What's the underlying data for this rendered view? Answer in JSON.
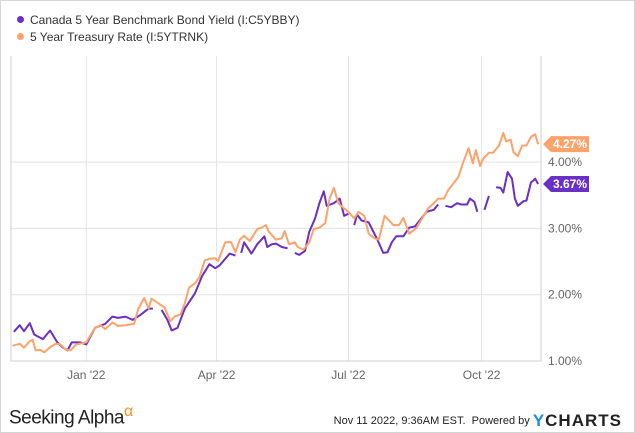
{
  "chart_data": {
    "type": "line",
    "legend_position": "top-left",
    "grid": true,
    "ylim": [
      1.0,
      5.6
    ],
    "xlim": [
      "2021-11-10",
      "2022-11-11"
    ],
    "x_ticks": [
      {
        "date": "2022-01-01",
        "label": "Jan '22"
      },
      {
        "date": "2022-04-01",
        "label": "Apr '22"
      },
      {
        "date": "2022-07-01",
        "label": "Jul '22"
      },
      {
        "date": "2022-10-01",
        "label": "Oct '22"
      }
    ],
    "y_ticks": [
      {
        "value": 1,
        "label": "1.00%"
      },
      {
        "value": 2,
        "label": "2.00%"
      },
      {
        "value": 3,
        "label": "3.00%"
      },
      {
        "value": 4,
        "label": "4.00%"
      }
    ],
    "series": [
      {
        "name": "Canada 5 Year Benchmark Bond Yield (I:C5YBBY)",
        "color": "#6a2fc6",
        "last_label": "3.67%",
        "points": [
          [
            "2021-11-12",
            1.44
          ],
          [
            "2021-11-16",
            1.54
          ],
          [
            "2021-11-19",
            1.45
          ],
          [
            "2021-11-23",
            1.57
          ],
          [
            "2021-11-26",
            1.4
          ],
          [
            "2021-12-02",
            1.33
          ],
          [
            "2021-12-07",
            1.46
          ],
          [
            "2021-12-12",
            1.28
          ],
          [
            "2021-12-16",
            1.2
          ],
          [
            "2021-12-19",
            1.16
          ],
          [
            "2021-12-22",
            1.28
          ],
          [
            "2021-12-28",
            1.28
          ],
          [
            "2022-01-01",
            1.25
          ],
          [
            "2022-01-07",
            1.5
          ],
          [
            "2022-01-14",
            1.56
          ],
          [
            "2022-01-19",
            1.67
          ],
          [
            "2022-01-23",
            1.65
          ],
          [
            "2022-01-28",
            1.67
          ],
          [
            "2022-02-02",
            1.62
          ],
          [
            "2022-02-07",
            1.69
          ],
          [
            "2022-02-13",
            1.79
          ],
          [
            "2022-02-16",
            1.79
          ],
          null,
          [
            "2022-02-22",
            1.77
          ],
          [
            "2022-02-26",
            1.62
          ],
          [
            "2022-03-01",
            1.46
          ],
          [
            "2022-03-05",
            1.5
          ],
          [
            "2022-03-10",
            1.79
          ],
          [
            "2022-03-17",
            2.02
          ],
          [
            "2022-03-22",
            2.28
          ],
          [
            "2022-03-27",
            2.46
          ],
          [
            "2022-03-31",
            2.4
          ],
          [
            "2022-04-03",
            2.44
          ],
          [
            "2022-04-10",
            2.62
          ],
          [
            "2022-04-14",
            2.59
          ],
          null,
          [
            "2022-04-18",
            2.63
          ],
          [
            "2022-04-20",
            2.79
          ],
          [
            "2022-04-25",
            2.62
          ],
          [
            "2022-04-29",
            2.76
          ],
          [
            "2022-05-04",
            2.88
          ],
          [
            "2022-05-06",
            2.72
          ],
          [
            "2022-05-09",
            2.76
          ],
          [
            "2022-05-12",
            2.77
          ],
          [
            "2022-05-16",
            2.72
          ],
          [
            "2022-05-20",
            2.7
          ],
          null,
          [
            "2022-05-25",
            2.63
          ],
          [
            "2022-05-28",
            2.6
          ],
          [
            "2022-06-01",
            2.66
          ],
          [
            "2022-06-04",
            2.95
          ],
          [
            "2022-06-08",
            3.15
          ],
          [
            "2022-06-11",
            3.38
          ],
          [
            "2022-06-14",
            3.56
          ],
          [
            "2022-06-16",
            3.34
          ],
          [
            "2022-06-21",
            3.38
          ],
          [
            "2022-06-25",
            3.45
          ],
          [
            "2022-06-28",
            3.19
          ],
          [
            "2022-07-01",
            3.22
          ],
          null,
          [
            "2022-07-05",
            3.05
          ],
          [
            "2022-07-07",
            3.21
          ],
          [
            "2022-07-10",
            3.12
          ],
          [
            "2022-07-15",
            3.09
          ],
          [
            "2022-07-18",
            2.96
          ],
          [
            "2022-07-21",
            2.83
          ],
          [
            "2022-07-25",
            2.63
          ],
          [
            "2022-07-28",
            2.64
          ],
          [
            "2022-07-31",
            2.79
          ],
          [
            "2022-08-03",
            2.88
          ],
          [
            "2022-08-08",
            2.88
          ],
          [
            "2022-08-12",
            3.01
          ],
          [
            "2022-08-16",
            3.03
          ],
          [
            "2022-08-20",
            3.14
          ],
          [
            "2022-08-24",
            3.25
          ],
          [
            "2022-08-29",
            3.28
          ],
          [
            "2022-09-01",
            3.36
          ],
          null,
          [
            "2022-09-06",
            3.34
          ],
          [
            "2022-09-10",
            3.32
          ],
          [
            "2022-09-14",
            3.38
          ],
          [
            "2022-09-17",
            3.36
          ],
          [
            "2022-09-21",
            3.36
          ],
          [
            "2022-09-23",
            3.45
          ],
          [
            "2022-09-26",
            3.4
          ],
          [
            "2022-09-28",
            3.25
          ],
          null,
          [
            "2022-10-03",
            3.28
          ],
          [
            "2022-10-06",
            3.49
          ],
          null,
          [
            "2022-10-11",
            3.62
          ],
          [
            "2022-10-14",
            3.61
          ],
          [
            "2022-10-16",
            3.54
          ],
          [
            "2022-10-19",
            3.85
          ],
          [
            "2022-10-22",
            3.75
          ],
          [
            "2022-10-24",
            3.45
          ],
          [
            "2022-10-26",
            3.34
          ],
          [
            "2022-10-30",
            3.41
          ],
          [
            "2022-11-01",
            3.42
          ],
          [
            "2022-11-04",
            3.69
          ],
          [
            "2022-11-07",
            3.75
          ],
          [
            "2022-11-09",
            3.67
          ]
        ]
      },
      {
        "name": "5 Year Treasury Rate (I:5YTRNK)",
        "color": "#fca36b",
        "last_label": "4.27%",
        "points": [
          [
            "2021-11-11",
            1.23
          ],
          [
            "2021-11-16",
            1.26
          ],
          [
            "2021-11-19",
            1.2
          ],
          [
            "2021-11-23",
            1.3
          ],
          [
            "2021-11-25",
            1.32
          ],
          [
            "2021-11-27",
            1.16
          ],
          [
            "2021-11-30",
            1.17
          ],
          [
            "2021-12-03",
            1.13
          ],
          [
            "2021-12-07",
            1.21
          ],
          [
            "2021-12-11",
            1.26
          ],
          [
            "2021-12-14",
            1.25
          ],
          [
            "2021-12-18",
            1.17
          ],
          [
            "2021-12-21",
            1.16
          ],
          [
            "2021-12-25",
            1.25
          ],
          [
            "2022-01-01",
            1.28
          ],
          [
            "2022-01-07",
            1.5
          ],
          [
            "2022-01-11",
            1.54
          ],
          [
            "2022-01-14",
            1.48
          ],
          [
            "2022-01-19",
            1.58
          ],
          [
            "2022-01-23",
            1.53
          ],
          [
            "2022-01-28",
            1.54
          ],
          [
            "2022-02-03",
            1.56
          ],
          [
            "2022-02-06",
            1.79
          ],
          [
            "2022-02-10",
            1.95
          ],
          [
            "2022-02-13",
            1.79
          ],
          [
            "2022-02-15",
            1.94
          ],
          [
            "2022-02-21",
            1.85
          ],
          [
            "2022-02-24",
            1.81
          ],
          [
            "2022-02-28",
            1.6
          ],
          [
            "2022-03-03",
            1.67
          ],
          [
            "2022-03-07",
            1.7
          ],
          [
            "2022-03-10",
            1.87
          ],
          [
            "2022-03-13",
            2.11
          ],
          [
            "2022-03-17",
            2.17
          ],
          [
            "2022-03-20",
            2.26
          ],
          [
            "2022-03-24",
            2.52
          ],
          [
            "2022-03-27",
            2.54
          ],
          [
            "2022-03-31",
            2.55
          ],
          [
            "2022-04-02",
            2.51
          ],
          [
            "2022-04-07",
            2.79
          ],
          [
            "2022-04-11",
            2.79
          ],
          [
            "2022-04-14",
            2.64
          ],
          [
            "2022-04-17",
            2.83
          ],
          [
            "2022-04-20",
            2.89
          ],
          [
            "2022-04-24",
            2.81
          ],
          [
            "2022-04-29",
            2.99
          ],
          [
            "2022-05-02",
            3.01
          ],
          [
            "2022-05-05",
            3.05
          ],
          [
            "2022-05-07",
            2.95
          ],
          [
            "2022-05-12",
            2.83
          ],
          [
            "2022-05-16",
            2.85
          ],
          [
            "2022-05-18",
            2.96
          ],
          [
            "2022-05-21",
            2.76
          ],
          [
            "2022-05-25",
            2.79
          ],
          [
            "2022-05-27",
            2.72
          ],
          [
            "2022-05-31",
            2.68
          ],
          [
            "2022-06-04",
            2.79
          ],
          [
            "2022-06-07",
            2.99
          ],
          [
            "2022-06-11",
            3.01
          ],
          [
            "2022-06-15",
            3.08
          ],
          [
            "2022-06-18",
            3.45
          ],
          [
            "2022-06-21",
            3.61
          ],
          [
            "2022-06-24",
            3.38
          ],
          [
            "2022-06-27",
            3.32
          ],
          [
            "2022-07-01",
            3.25
          ],
          [
            "2022-07-05",
            3.15
          ],
          [
            "2022-07-08",
            3.25
          ],
          [
            "2022-07-12",
            3.19
          ],
          [
            "2022-07-15",
            2.92
          ],
          [
            "2022-07-19",
            2.85
          ],
          [
            "2022-07-22",
            2.83
          ],
          [
            "2022-07-26",
            3.19
          ],
          [
            "2022-07-29",
            3.12
          ],
          [
            "2022-08-01",
            3.05
          ],
          [
            "2022-08-05",
            3.05
          ],
          [
            "2022-08-08",
            3.16
          ],
          [
            "2022-08-12",
            2.92
          ],
          [
            "2022-08-17",
            3.01
          ],
          [
            "2022-08-22",
            3.19
          ],
          [
            "2022-08-25",
            3.3
          ],
          [
            "2022-08-29",
            3.38
          ],
          [
            "2022-09-01",
            3.45
          ],
          [
            "2022-09-05",
            3.45
          ],
          [
            "2022-09-08",
            3.58
          ],
          [
            "2022-09-12",
            3.69
          ],
          [
            "2022-09-15",
            3.78
          ],
          [
            "2022-09-18",
            3.98
          ],
          [
            "2022-09-22",
            4.21
          ],
          [
            "2022-09-25",
            3.98
          ],
          [
            "2022-09-27",
            4.18
          ],
          [
            "2022-09-30",
            3.94
          ],
          [
            "2022-10-02",
            4.05
          ],
          [
            "2022-10-06",
            4.14
          ],
          [
            "2022-10-09",
            4.14
          ],
          [
            "2022-10-13",
            4.25
          ],
          [
            "2022-10-16",
            4.44
          ],
          [
            "2022-10-18",
            4.31
          ],
          [
            "2022-10-21",
            4.34
          ],
          [
            "2022-10-23",
            4.15
          ],
          [
            "2022-10-26",
            4.09
          ],
          [
            "2022-10-29",
            4.25
          ],
          [
            "2022-11-01",
            4.25
          ],
          [
            "2022-11-04",
            4.38
          ],
          [
            "2022-11-07",
            4.42
          ],
          [
            "2022-11-09",
            4.27
          ]
        ]
      }
    ]
  },
  "footer": {
    "brand": "Seeking Alpha",
    "brand_alpha": "α",
    "timestamp": "Nov 11 2022, 9:36AM EST.",
    "powered_by": "Powered by",
    "ycharts_y": "Y",
    "ycharts_rest": "CHARTS"
  }
}
